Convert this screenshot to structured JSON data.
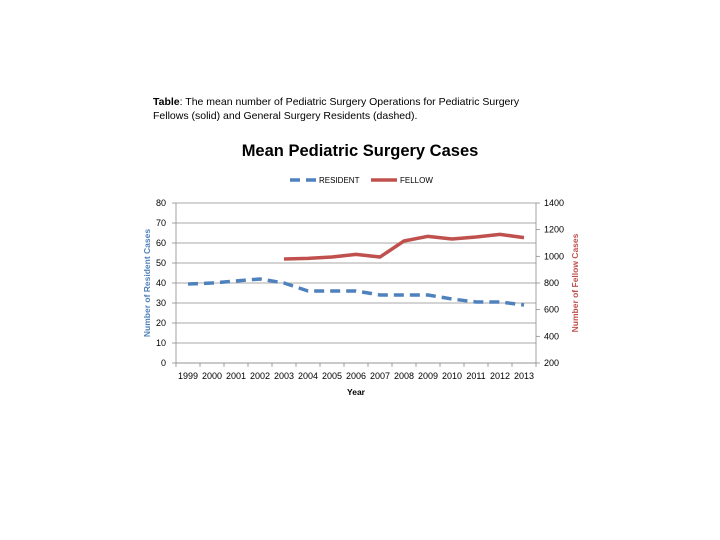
{
  "caption": {
    "lead": "Table",
    "text": ": The mean number of Pediatric Surgery Operations for Pediatric Surgery Fellows (solid) and General Surgery Residents (dashed)."
  },
  "chart_data": {
    "type": "line",
    "title": "Mean Pediatric Surgery Cases",
    "xlabel": "Year",
    "ylabel_left": "Number of Resident Cases",
    "ylabel_right": "Number of Fellow Cases",
    "x": [
      "1999",
      "2000",
      "2001",
      "2002",
      "2003",
      "2004",
      "2005",
      "2006",
      "2007",
      "2008",
      "2009",
      "2010",
      "2011",
      "2012",
      "2013"
    ],
    "ylim_left": [
      0,
      80
    ],
    "yticks_left": [
      0,
      10,
      20,
      30,
      40,
      50,
      60,
      70,
      80
    ],
    "ylim_right": [
      200,
      1400
    ],
    "yticks_right": [
      200,
      400,
      600,
      800,
      1000,
      1200,
      1400
    ],
    "grid": true,
    "legend_position": "top-center",
    "series": [
      {
        "name": "RESIDENT",
        "axis": "left",
        "style": "dashed",
        "color": "#4f81bd",
        "values": [
          39.5,
          40,
          41,
          42,
          40,
          36,
          36,
          36,
          34,
          34,
          34,
          32,
          30.5,
          30.5,
          29
        ]
      },
      {
        "name": "FELLOW",
        "axis": "right",
        "style": "solid",
        "color": "#c0504d",
        "values": [
          null,
          null,
          null,
          null,
          980,
          985,
          995,
          1015,
          995,
          1115,
          1150,
          1130,
          1145,
          1165,
          1140
        ]
      }
    ]
  }
}
